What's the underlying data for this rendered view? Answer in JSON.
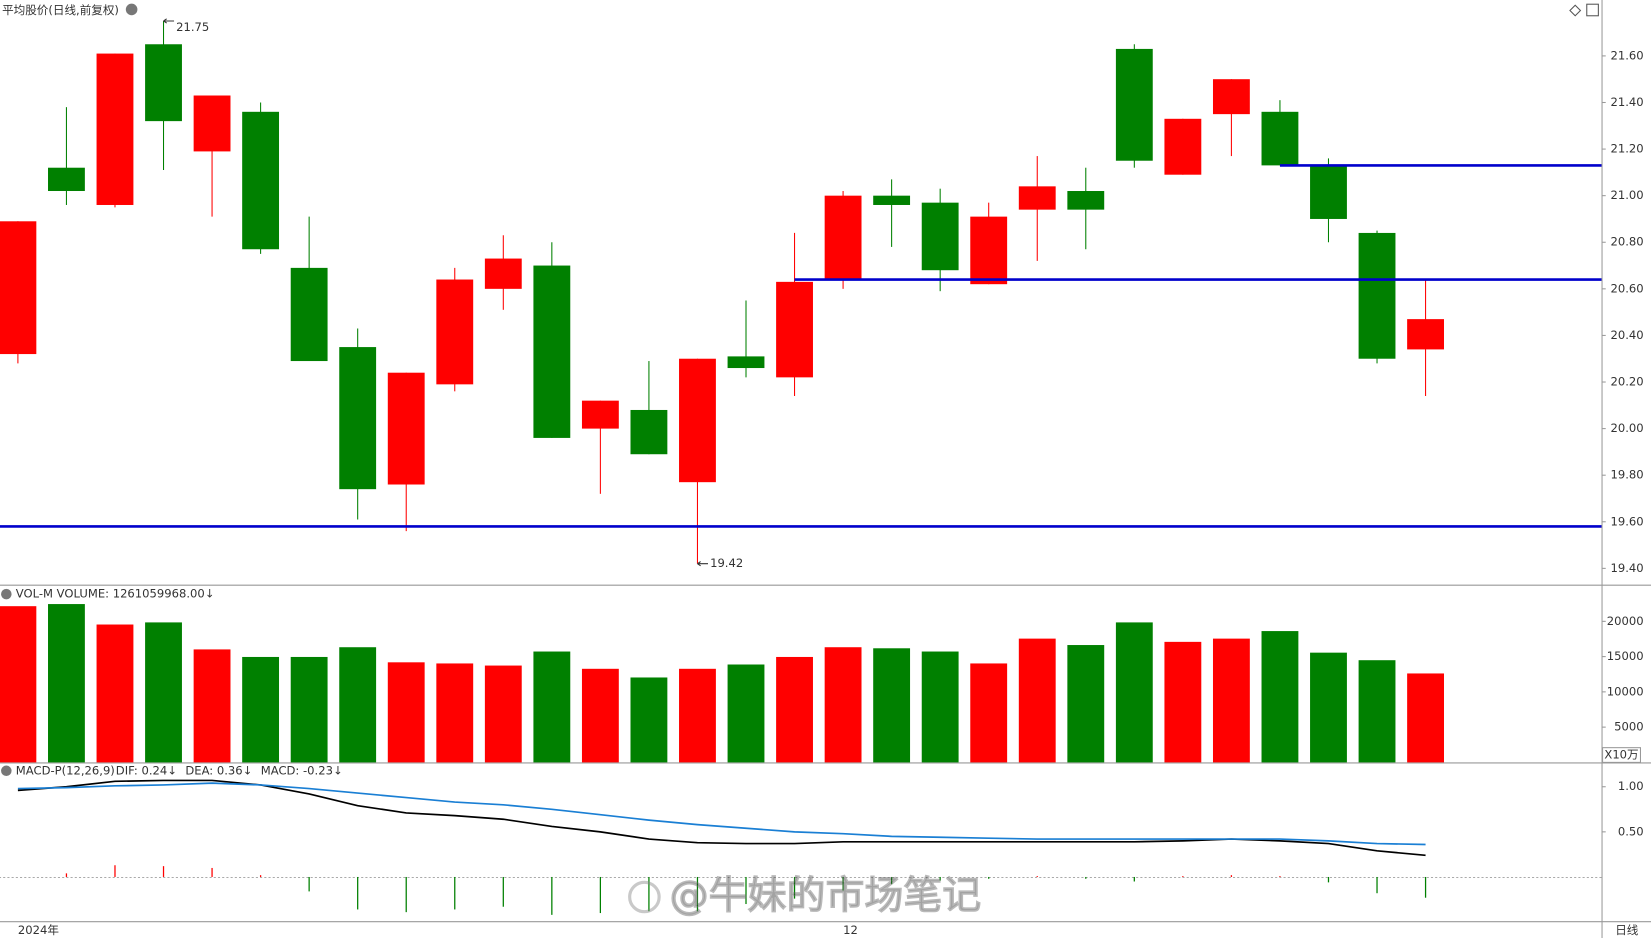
{
  "chart_data": [
    {
      "type": "candlestick",
      "title": "平均股价(日线,前复权)",
      "categories": [
        "2024年",
        null,
        null,
        null,
        null,
        null,
        null,
        null,
        null,
        null,
        null,
        null,
        null,
        null,
        null,
        null,
        null,
        "12",
        null,
        null,
        null,
        null,
        null,
        null,
        null,
        null,
        null,
        null,
        null,
        null
      ],
      "open": [
        20.32,
        21.12,
        20.96,
        21.65,
        21.19,
        21.36,
        20.69,
        20.35,
        19.76,
        20.19,
        20.6,
        20.7,
        20.0,
        20.08,
        19.77,
        20.31,
        20.22,
        20.64,
        21.0,
        20.97,
        20.62,
        20.94,
        21.02,
        21.63,
        21.09,
        21.35,
        21.36,
        21.13,
        20.84,
        20.34
      ],
      "high": [
        20.89,
        21.38,
        21.61,
        21.75,
        21.43,
        21.4,
        20.91,
        20.43,
        20.24,
        20.69,
        20.83,
        20.8,
        20.12,
        20.29,
        20.3,
        20.55,
        20.84,
        21.02,
        21.07,
        21.03,
        20.97,
        21.17,
        21.12,
        21.65,
        21.33,
        21.5,
        21.41,
        21.16,
        20.85,
        20.64
      ],
      "low": [
        20.28,
        20.96,
        20.95,
        21.11,
        20.91,
        20.75,
        20.29,
        19.61,
        19.56,
        20.16,
        20.51,
        19.96,
        19.72,
        19.89,
        19.42,
        20.22,
        20.14,
        20.6,
        20.78,
        20.59,
        20.62,
        20.72,
        20.77,
        21.12,
        21.09,
        21.17,
        21.13,
        20.8,
        20.28,
        20.14
      ],
      "close": [
        20.89,
        21.02,
        21.61,
        21.32,
        21.43,
        20.77,
        20.29,
        19.74,
        20.24,
        20.64,
        20.73,
        19.96,
        20.12,
        19.89,
        20.3,
        20.26,
        20.63,
        21.0,
        20.96,
        20.68,
        20.91,
        21.04,
        20.94,
        21.15,
        21.33,
        21.5,
        21.13,
        20.9,
        20.3,
        20.47
      ],
      "up_color": "#ff0000",
      "down_color": "#008000",
      "levels": [
        {
          "value": 19.58
        },
        {
          "value": 20.64,
          "from": 16
        },
        {
          "value": 21.13,
          "from": 26
        }
      ],
      "level_color": "#0000cc",
      "ylim": [
        19.33,
        21.84
      ],
      "yticks": [
        {
          "value": 19.4,
          "label": "19.40"
        },
        {
          "value": 19.6,
          "label": "19.60"
        },
        {
          "value": 19.8,
          "label": "19.80"
        },
        {
          "value": 20.0,
          "label": "20.00"
        },
        {
          "value": 20.2,
          "label": "20.20"
        },
        {
          "value": 20.4,
          "label": "20.40"
        },
        {
          "value": 20.6,
          "label": "20.60"
        },
        {
          "value": 20.8,
          "label": "20.80"
        },
        {
          "value": 21.0,
          "label": "21.00"
        },
        {
          "value": 21.2,
          "label": "21.20"
        },
        {
          "value": 21.4,
          "label": "21.40"
        },
        {
          "value": 21.6,
          "label": "21.60"
        }
      ]
    },
    {
      "type": "bar",
      "title": "VOL-M VOLUME: 1261059968.00↓",
      "unit": "X10万",
      "values": [
        22150,
        22450,
        19550,
        19850,
        16020,
        14950,
        14950,
        16330,
        14190,
        14030,
        13730,
        15720,
        13270,
        12040,
        13270,
        13880,
        14950,
        16330,
        16180,
        15720,
        14030,
        17550,
        16640,
        19850,
        17090,
        17550,
        18620,
        15560,
        14490,
        12610.6
      ],
      "ylim": [
        0,
        25200
      ],
      "yticks": [
        5000,
        10000,
        15000,
        20000
      ]
    },
    {
      "type": "line",
      "title": "MACD-P(12,26,9)",
      "series": [
        {
          "label": "DIF: 0.24↓",
          "color": "#000000",
          "values": [
            0.96,
            1.0,
            1.06,
            1.07,
            1.07,
            1.02,
            0.92,
            0.79,
            0.71,
            0.68,
            0.64,
            0.56,
            0.5,
            0.42,
            0.38,
            0.37,
            0.37,
            0.39,
            0.39,
            0.39,
            0.39,
            0.39,
            0.39,
            0.39,
            0.4,
            0.42,
            0.4,
            0.37,
            0.29,
            0.24
          ]
        },
        {
          "label": "DEA: 0.36↓",
          "color": "#1a7fd4",
          "values": [
            0.98,
            0.99,
            1.01,
            1.02,
            1.04,
            1.02,
            0.98,
            0.93,
            0.88,
            0.83,
            0.8,
            0.75,
            0.69,
            0.63,
            0.58,
            0.54,
            0.5,
            0.48,
            0.45,
            0.44,
            0.43,
            0.42,
            0.42,
            0.42,
            0.42,
            0.42,
            0.42,
            0.4,
            0.37,
            0.36
          ]
        }
      ],
      "histogram": {
        "label": "MACD: -0.23↓",
        "color": "#800080",
        "values": [
          0,
          0.04,
          0.13,
          0.12,
          0.1,
          0.02,
          -0.16,
          -0.36,
          -0.39,
          -0.36,
          -0.33,
          -0.42,
          -0.4,
          -0.38,
          -0.38,
          -0.3,
          -0.24,
          -0.15,
          -0.08,
          -0.04,
          -0.02,
          0.01,
          -0.02,
          -0.05,
          0.01,
          0.02,
          0.01,
          -0.06,
          -0.18,
          -0.23
        ]
      },
      "ylim": [
        -0.49,
        1.27
      ],
      "yticks": [
        {
          "value": 0.5,
          "label": "0.50"
        },
        {
          "value": 1.0,
          "label": "1.00"
        }
      ]
    },
    {
      "type": "text",
      "period": "日线",
      "watermark": "@牛妹的市场笔记"
    }
  ]
}
